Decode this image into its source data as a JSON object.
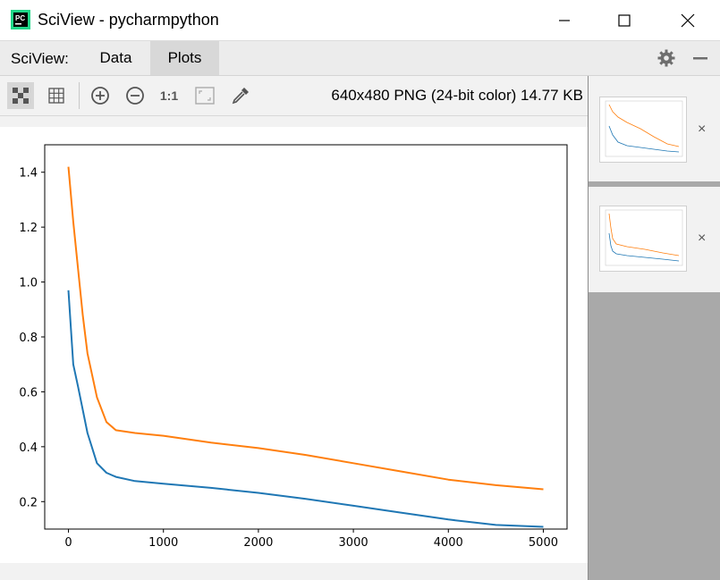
{
  "window": {
    "title": "SciView - pycharmpython",
    "app_icon_text": "PC",
    "minimize_icon": "minimize-icon",
    "maximize_icon": "maximize-icon",
    "close_icon": "close-icon"
  },
  "menubar": {
    "label": "SciView:",
    "tabs": [
      {
        "label": "Data",
        "active": false
      },
      {
        "label": "Plots",
        "active": true
      }
    ],
    "settings_icon": "gear-icon",
    "hide_icon": "minus-icon"
  },
  "toolbar": {
    "tools": [
      "checkerboard-icon",
      "grid-icon",
      "zoom-in-icon",
      "zoom-out-icon",
      "actual-size-icon",
      "fit-to-window-icon",
      "color-picker-icon"
    ],
    "actual_size_label": "1:1",
    "image_info": "640x480 PNG (24-bit color) 14.77 KB"
  },
  "thumbnails": [
    {
      "close_label": "×",
      "selected": true
    },
    {
      "close_label": "×",
      "selected": false
    }
  ],
  "colors": {
    "orange": "#ff7f0e",
    "blue": "#1f77b4"
  },
  "chart_data": {
    "type": "line",
    "title": "",
    "xlabel": "",
    "ylabel": "",
    "xlim": [
      -250,
      5250
    ],
    "ylim": [
      0.1,
      1.5
    ],
    "xticks": [
      0,
      1000,
      2000,
      3000,
      4000,
      5000
    ],
    "yticks": [
      0.2,
      0.4,
      0.6,
      0.8,
      1.0,
      1.2,
      1.4
    ],
    "xtick_labels": [
      "0",
      "1000",
      "2000",
      "3000",
      "4000",
      "5000"
    ],
    "ytick_labels": [
      "0.2",
      "0.4",
      "0.6",
      "0.8",
      "1.0",
      "1.2",
      "1.4"
    ],
    "grid": false,
    "series": [
      {
        "color": "#1f77b4",
        "x": [
          0,
          50,
          100,
          200,
          300,
          400,
          500,
          700,
          1000,
          1500,
          2000,
          2500,
          3000,
          3500,
          4000,
          4500,
          5000
        ],
        "y": [
          0.97,
          0.7,
          0.62,
          0.45,
          0.34,
          0.305,
          0.29,
          0.275,
          0.265,
          0.25,
          0.232,
          0.21,
          0.185,
          0.16,
          0.135,
          0.115,
          0.108
        ]
      },
      {
        "color": "#ff7f0e",
        "x": [
          0,
          50,
          100,
          150,
          200,
          300,
          400,
          500,
          700,
          1000,
          1500,
          2000,
          2500,
          3000,
          3500,
          4000,
          4500,
          5000
        ],
        "y": [
          1.42,
          1.22,
          1.05,
          0.88,
          0.74,
          0.58,
          0.49,
          0.46,
          0.45,
          0.44,
          0.415,
          0.395,
          0.37,
          0.34,
          0.31,
          0.28,
          0.26,
          0.245
        ]
      }
    ]
  }
}
